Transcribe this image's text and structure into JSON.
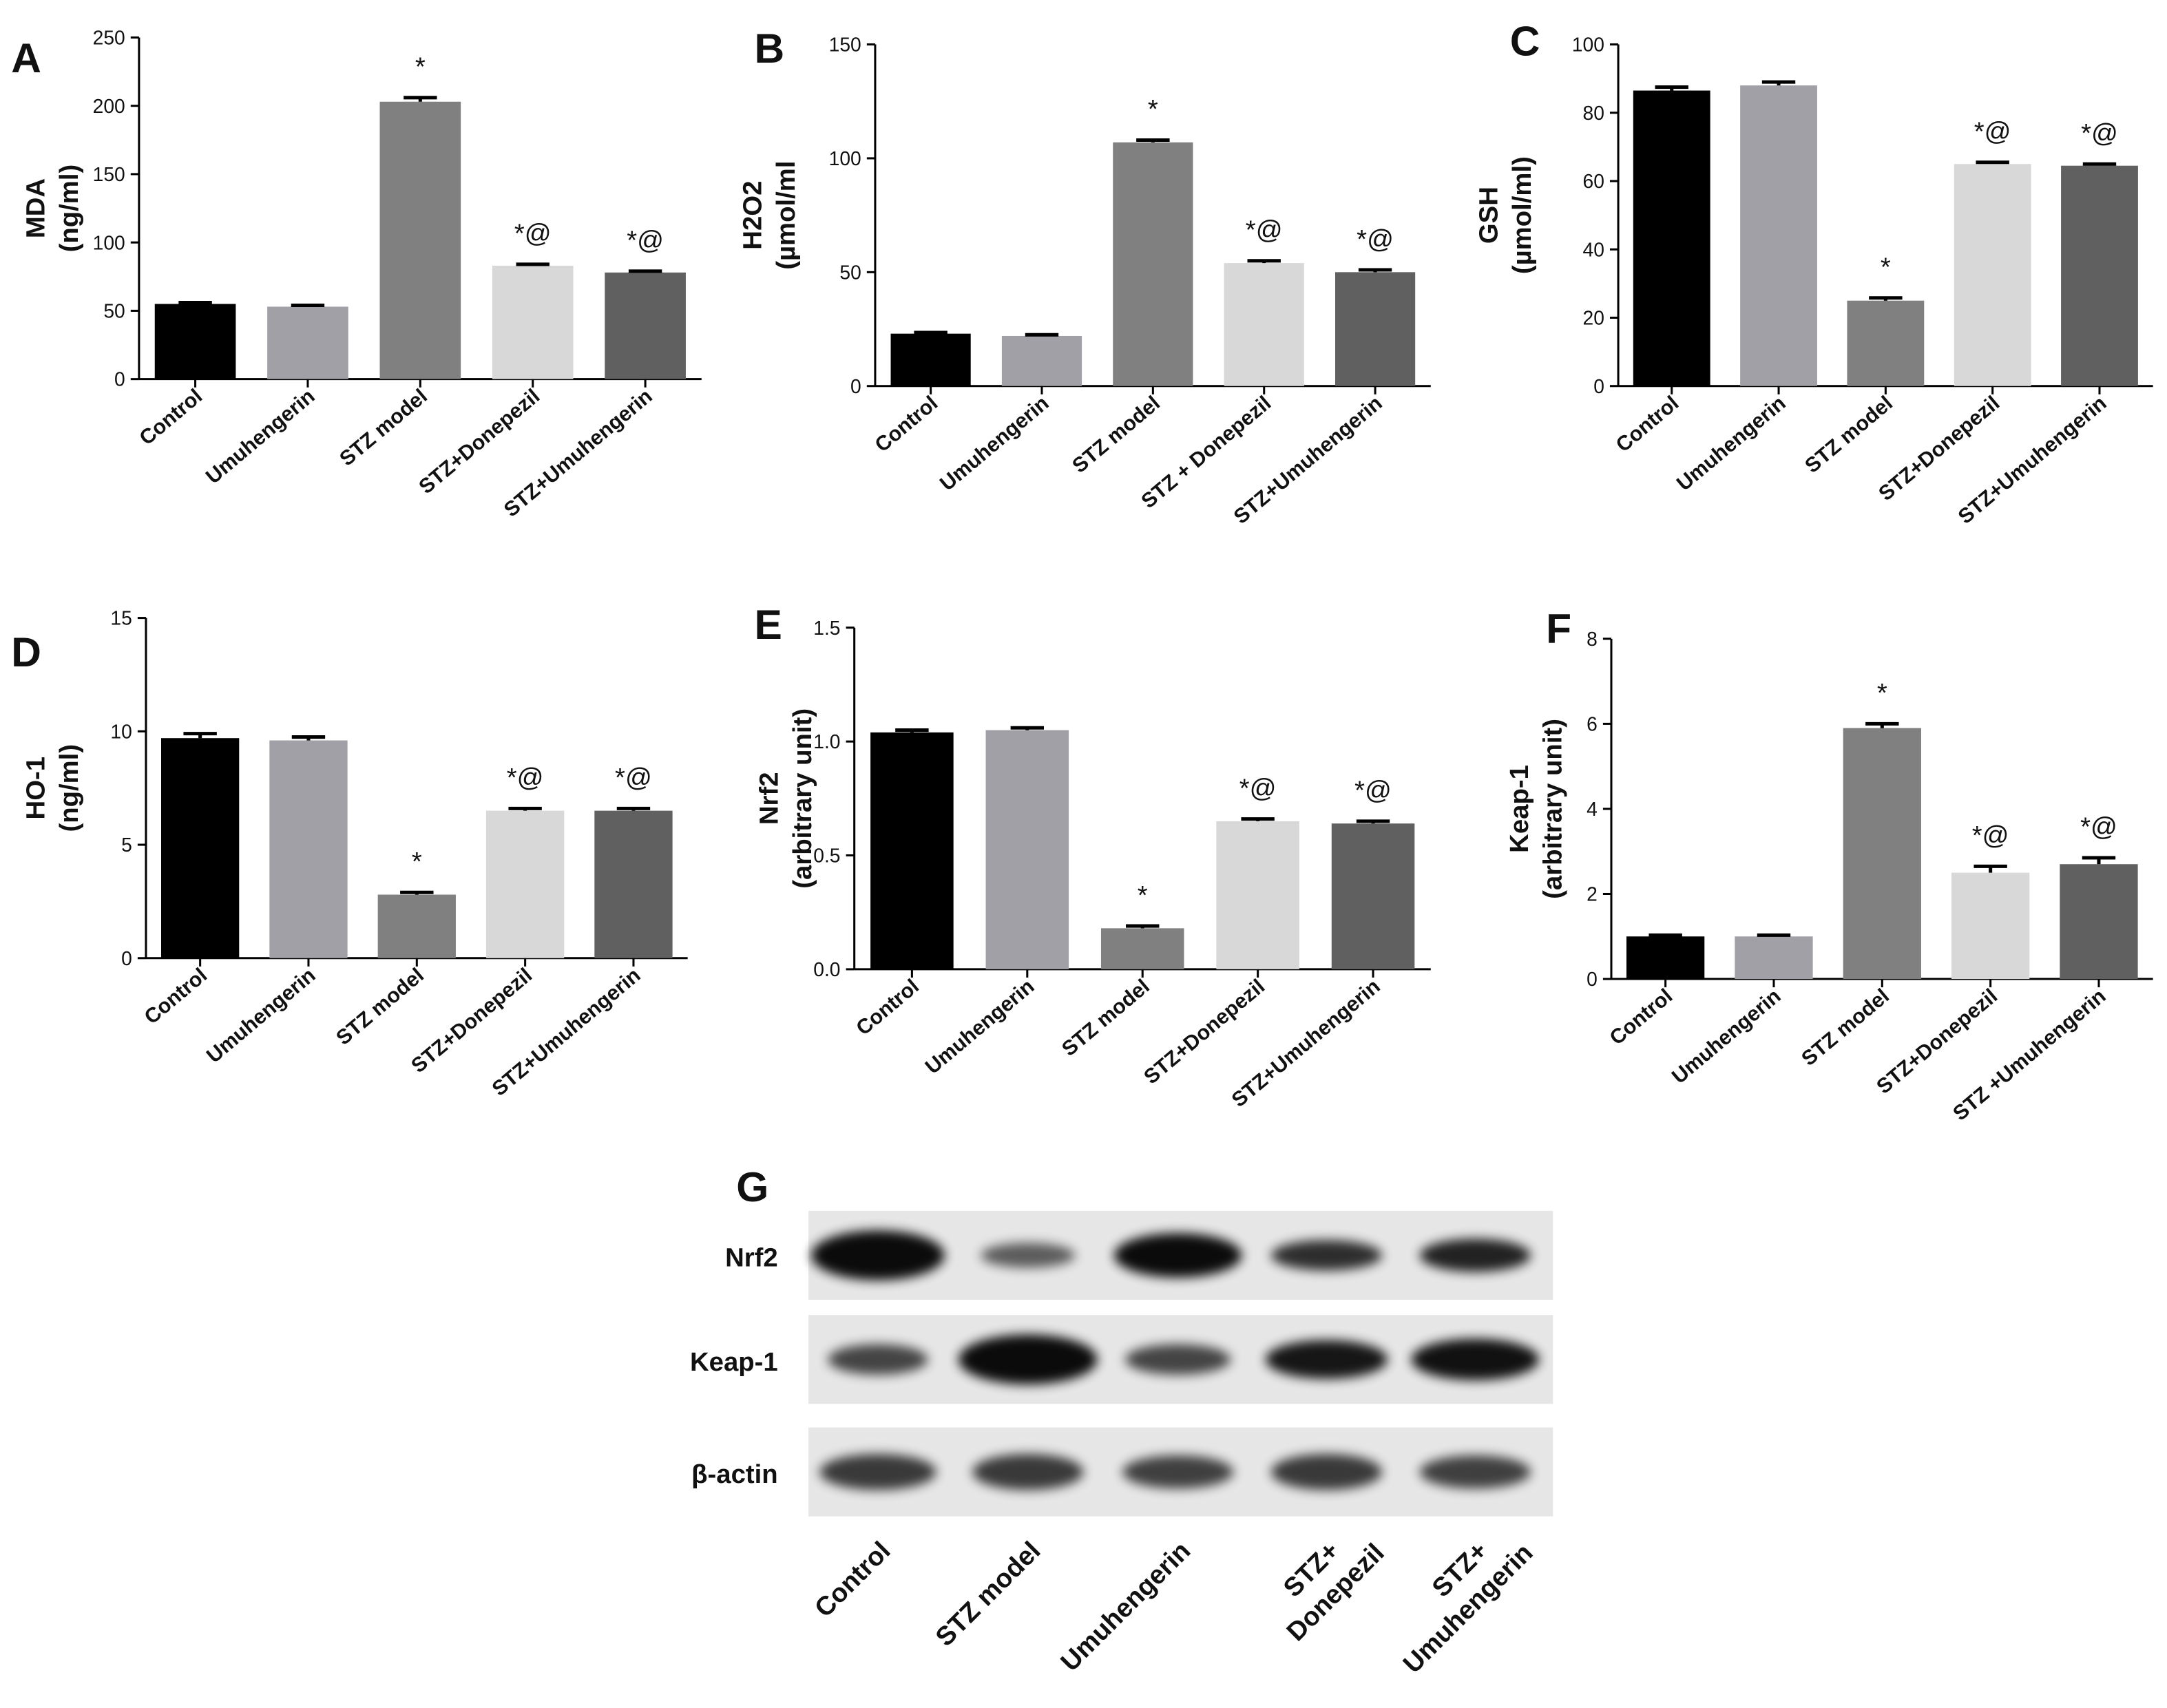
{
  "chart_data": [
    {
      "type": "bar",
      "panel": "A",
      "ylabel": [
        "MDA",
        "(ng/ml)"
      ],
      "categories": [
        "Control",
        "Umuhengerin",
        "STZ model",
        "STZ+Donepezil",
        "STZ+Umuhengerin"
      ],
      "values": [
        55,
        53,
        203,
        83,
        78
      ],
      "errors": [
        1,
        1,
        3,
        1,
        1
      ],
      "annotations": [
        null,
        null,
        "*",
        "*@",
        "*@"
      ],
      "colors": [
        "#000000",
        "#a0a0a6",
        "#808080",
        "#d8d8d8",
        "#606060"
      ],
      "ylim": [
        0,
        250
      ],
      "yticks": [
        0,
        50,
        100,
        150,
        200,
        250
      ]
    },
    {
      "type": "bar",
      "panel": "B",
      "ylabel": [
        "H2O2",
        "(µmol/ml"
      ],
      "categories": [
        "Control",
        "Umuhengerin",
        "STZ model",
        "STZ + Donepezil",
        "STZ+Umuhengerin"
      ],
      "values": [
        23,
        22,
        107,
        54,
        50
      ],
      "errors": [
        0.5,
        0.5,
        1,
        1,
        1
      ],
      "annotations": [
        null,
        null,
        "*",
        "*@",
        "*@"
      ],
      "colors": [
        "#000000",
        "#a0a0a6",
        "#808080",
        "#d8d8d8",
        "#606060"
      ],
      "ylim": [
        0,
        150
      ],
      "yticks": [
        0,
        50,
        100,
        150
      ]
    },
    {
      "type": "bar",
      "panel": "C",
      "ylabel": [
        "GSH",
        "(µmol/ml)"
      ],
      "categories": [
        "Control",
        "Umuhengerin",
        "STZ model",
        "STZ+Donepezil",
        "STZ+Umuhengerin"
      ],
      "values": [
        86.5,
        88,
        25,
        65,
        64.5
      ],
      "errors": [
        1,
        1,
        0.8,
        0.5,
        0.5
      ],
      "annotations": [
        null,
        null,
        "*",
        "*@",
        "*@"
      ],
      "colors": [
        "#000000",
        "#a0a0a6",
        "#808080",
        "#d8d8d8",
        "#606060"
      ],
      "ylim": [
        0,
        100
      ],
      "yticks": [
        0,
        20,
        40,
        60,
        80,
        100
      ]
    },
    {
      "type": "bar",
      "panel": "D",
      "ylabel": [
        "HO-1",
        "(ng/ml)"
      ],
      "categories": [
        "Control",
        "Umuhengerin",
        "STZ model",
        "STZ+Donepezil",
        "STZ+Umuhengerin"
      ],
      "values": [
        9.7,
        9.6,
        2.8,
        6.5,
        6.5
      ],
      "errors": [
        0.2,
        0.15,
        0.1,
        0.1,
        0.1
      ],
      "annotations": [
        null,
        null,
        "*",
        "*@",
        "*@"
      ],
      "colors": [
        "#000000",
        "#a0a0a6",
        "#808080",
        "#d8d8d8",
        "#606060"
      ],
      "ylim": [
        0,
        15
      ],
      "yticks": [
        0,
        5,
        10,
        15
      ]
    },
    {
      "type": "bar",
      "panel": "E",
      "ylabel": [
        "Nrf2",
        "(arbitrary unit)"
      ],
      "categories": [
        "Control",
        "Umuhengerin",
        "STZ model",
        "STZ+Donepezil",
        "STZ+Umuhengerin"
      ],
      "values": [
        1.04,
        1.05,
        0.18,
        0.65,
        0.64
      ],
      "errors": [
        0.01,
        0.01,
        0.01,
        0.01,
        0.01
      ],
      "annotations": [
        null,
        null,
        "*",
        "*@",
        "*@"
      ],
      "colors": [
        "#000000",
        "#a0a0a6",
        "#808080",
        "#d8d8d8",
        "#606060"
      ],
      "ylim": [
        0,
        1.5
      ],
      "yticks": [
        {
          "value": 0,
          "label": "0.0"
        },
        0.5,
        {
          "value": 1,
          "label": "1.0"
        },
        1.5
      ]
    },
    {
      "type": "bar",
      "panel": "F",
      "ylabel": [
        "Keap-1",
        "(arbitrary unit)"
      ],
      "categories": [
        "Control",
        "Umuhengerin",
        "STZ model",
        "STZ+Donepezil",
        "STZ +Umuhengerin"
      ],
      "values": [
        1.0,
        1.0,
        5.9,
        2.5,
        2.7
      ],
      "errors": [
        0.03,
        0.03,
        0.1,
        0.15,
        0.15
      ],
      "annotations": [
        null,
        null,
        "*",
        "*@",
        "*@"
      ],
      "colors": [
        "#000000",
        "#a0a0a6",
        "#808080",
        "#d8d8d8",
        "#606060"
      ],
      "ylim": [
        0,
        8
      ],
      "yticks": [
        0,
        2,
        4,
        6,
        8
      ]
    }
  ],
  "blot": {
    "panel": "G",
    "rows": [
      "Nrf2",
      "Keap-1",
      "β-actin"
    ],
    "columns": [
      [
        "Control"
      ],
      [
        "STZ model"
      ],
      [
        "Umuhengerin"
      ],
      [
        "STZ+",
        "Donepezil"
      ],
      [
        "STZ+",
        "Umuhengerin"
      ]
    ]
  }
}
